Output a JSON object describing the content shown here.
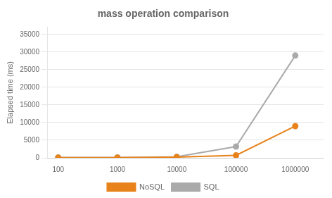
{
  "chart_data": {
    "type": "line",
    "title": "mass operation comparison",
    "y_label": "Elapsed time (ms)",
    "x": [
      100,
      1000,
      10000,
      100000,
      1000000
    ],
    "series": [
      {
        "name": "NoSQL",
        "color": "#E8821A",
        "marker": "circle",
        "values": [
          50,
          50,
          200,
          700,
          9000
        ]
      },
      {
        "name": "SQL",
        "color": "#AAAAAA",
        "marker": "circle",
        "values": [
          100,
          100,
          300,
          3200,
          29000
        ]
      }
    ],
    "log": "x",
    "xlim": [
      65,
      3000000
    ],
    "xticks": [
      100,
      1000,
      10000,
      100000,
      1000000
    ],
    "ylim": [
      0,
      37000
    ],
    "yticks": [
      0,
      5000,
      10000,
      15000,
      20000,
      25000,
      30000,
      35000
    ],
    "grid": "y",
    "legend": "bottom"
  }
}
